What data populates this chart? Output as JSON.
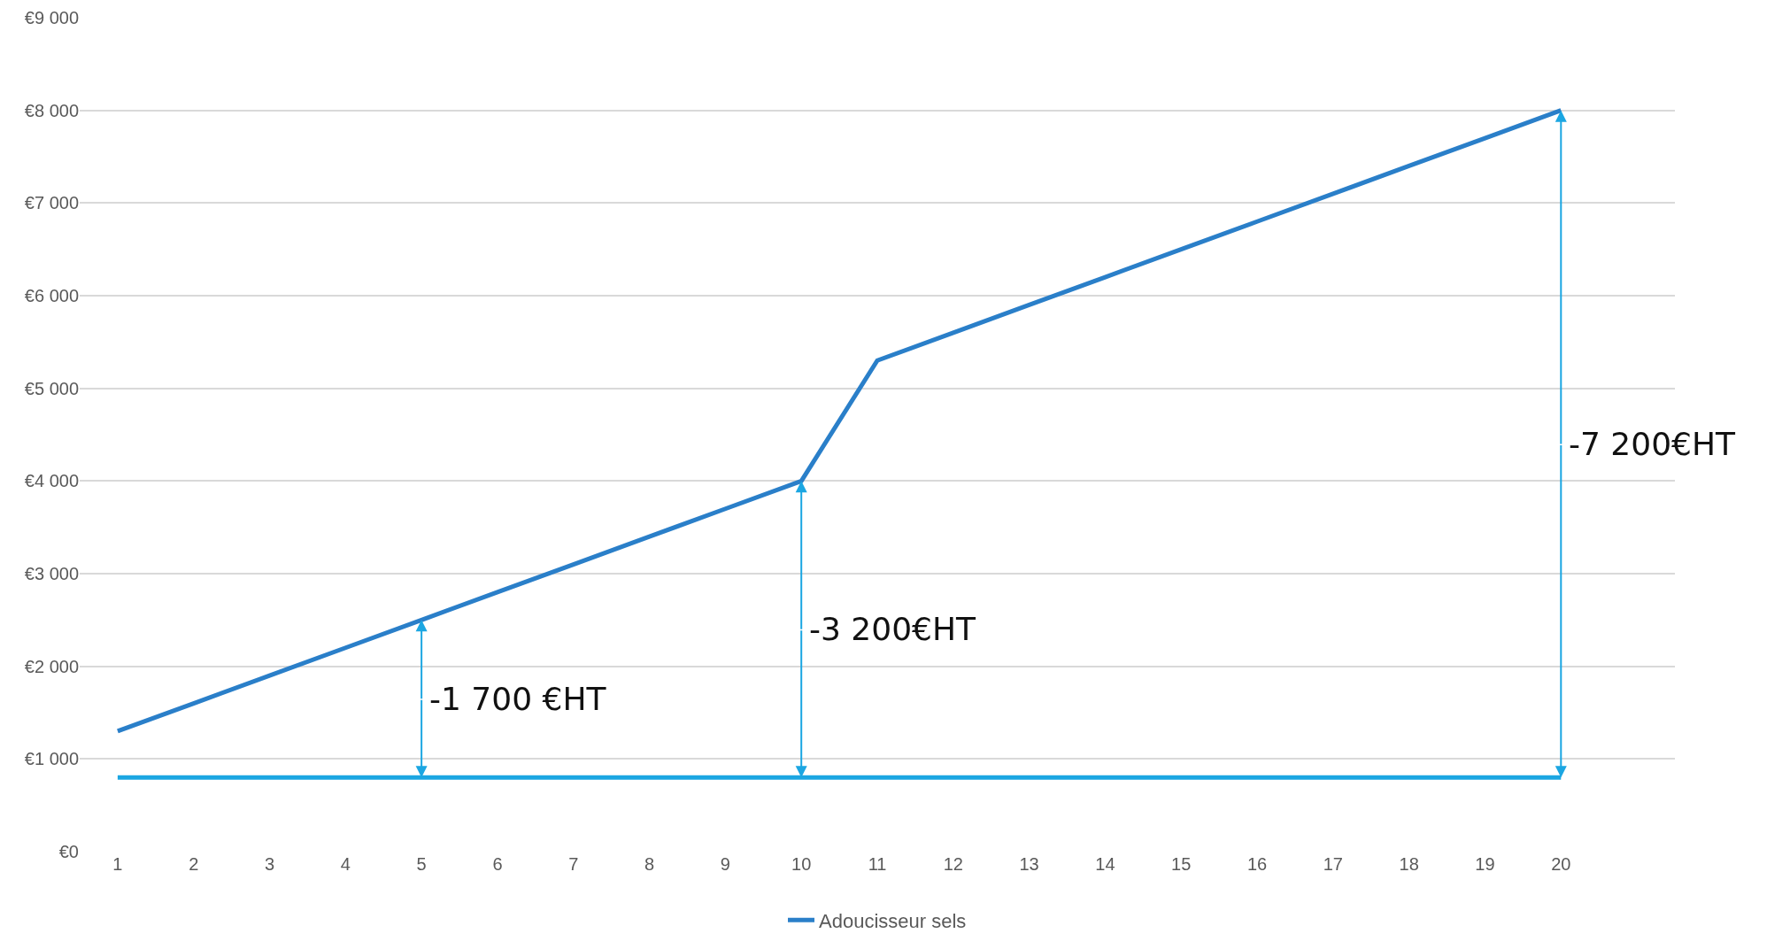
{
  "chart_data": {
    "type": "line",
    "x": [
      1,
      2,
      3,
      4,
      5,
      6,
      7,
      8,
      9,
      10,
      11,
      12,
      13,
      14,
      15,
      16,
      17,
      18,
      19,
      20
    ],
    "series": [
      {
        "color": "#1ba6e2",
        "values": [
          800,
          800,
          800,
          800,
          800,
          800,
          800,
          800,
          800,
          800,
          800,
          800,
          800,
          800,
          800,
          800,
          800,
          800,
          800,
          800
        ]
      },
      {
        "name": "Adoucisseur sels",
        "color": "#2a7fc9",
        "values": [
          1300,
          1600,
          1900,
          2200,
          2500,
          2800,
          3100,
          3400,
          3700,
          4000,
          5300,
          5600,
          5900,
          6200,
          6500,
          6800,
          7100,
          7400,
          7700,
          8000
        ]
      }
    ],
    "xlim": [
      0.5,
      21.5
    ],
    "xticks": [
      1,
      2,
      3,
      4,
      5,
      6,
      7,
      8,
      9,
      10,
      11,
      12,
      13,
      14,
      15,
      16,
      17,
      18,
      19,
      20
    ],
    "ylim": [
      0,
      9000
    ],
    "yticks": [
      {
        "value": 0,
        "label": "€0"
      },
      {
        "value": 1000,
        "label": "€1 000"
      },
      {
        "value": 2000,
        "label": "€2 000"
      },
      {
        "value": 3000,
        "label": "€3 000"
      },
      {
        "value": 4000,
        "label": "€4 000"
      },
      {
        "value": 5000,
        "label": "€5 000"
      },
      {
        "value": 6000,
        "label": "€6 000"
      },
      {
        "value": 7000,
        "label": "€7 000"
      },
      {
        "value": 8000,
        "label": "€8 000"
      },
      {
        "value": 9000,
        "label": "€9 000"
      }
    ],
    "grid": "y",
    "legend": "bottom",
    "marker": "none",
    "line_style": "solid",
    "annotations": [
      {
        "text": "-1 700 €HT",
        "x": 5,
        "y": 2500
      },
      {
        "text": "-3 200€HT",
        "x": 10,
        "y": 4000
      },
      {
        "text": "-7 200€HT",
        "x": 20,
        "y": 8000
      }
    ]
  }
}
